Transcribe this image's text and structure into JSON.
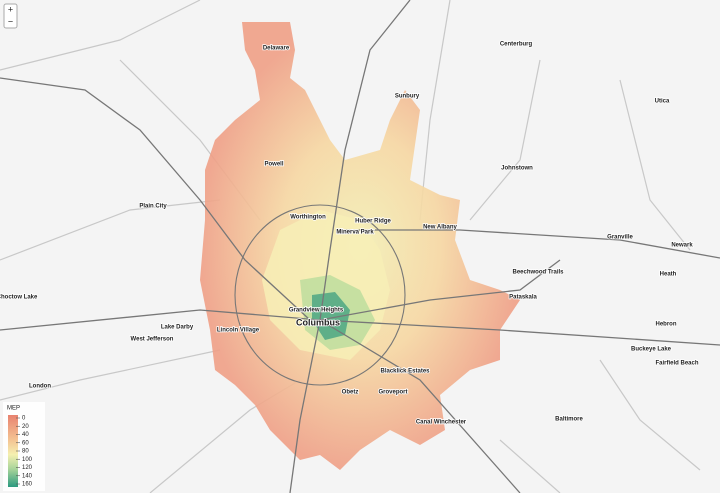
{
  "map": {
    "zoom_controls": [
      "+",
      "−"
    ],
    "legend": {
      "title": "MEP",
      "ticks": [
        0,
        20,
        40,
        60,
        80,
        100,
        120,
        140,
        160
      ]
    },
    "places": [
      {
        "label": "Delaware"
      },
      {
        "label": "Centerburg"
      },
      {
        "label": "Sunbury"
      },
      {
        "label": "Utica"
      },
      {
        "label": "Powell"
      },
      {
        "label": "Johnstown"
      },
      {
        "label": "Plain City"
      },
      {
        "label": "Worthington"
      },
      {
        "label": "Huber Ridge"
      },
      {
        "label": "Minerva Park"
      },
      {
        "label": "New Albany"
      },
      {
        "label": "Granville"
      },
      {
        "label": "Newark"
      },
      {
        "label": "Heath"
      },
      {
        "label": "Beechwood Trails"
      },
      {
        "label": "Pataskala"
      },
      {
        "label": "Grandview Heights"
      },
      {
        "label": "Choctow Lake"
      },
      {
        "label": "Lake Darby"
      },
      {
        "label": "West Jefferson"
      },
      {
        "label": "Lincoln Village"
      },
      {
        "label": "Columbus"
      },
      {
        "label": "Hebron"
      },
      {
        "label": "Buckeye Lake"
      },
      {
        "label": "Fairfield Beach"
      },
      {
        "label": "Blacklick Estates"
      },
      {
        "label": "London"
      },
      {
        "label": "Obetz"
      },
      {
        "label": "Groveport"
      },
      {
        "label": "Canal Winchester"
      },
      {
        "label": "Baltimore"
      }
    ]
  }
}
